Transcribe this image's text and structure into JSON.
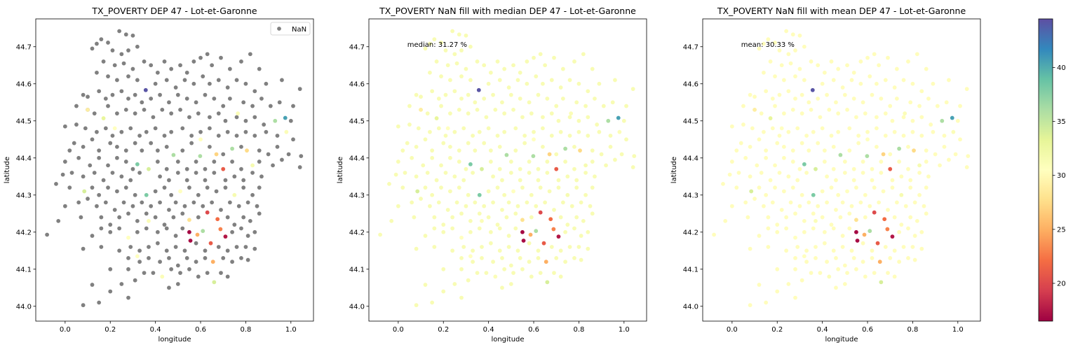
{
  "chart_data": [
    {
      "type": "scatter",
      "title": "TX_POVERTY DEP 47 -  Lot-et-Garonne",
      "xlabel": "longitude",
      "ylabel": "latitude",
      "xlim": [
        -0.13,
        1.1
      ],
      "ylim": [
        43.96,
        44.775
      ],
      "xticks": [
        "0.0",
        "0.2",
        "0.4",
        "0.6",
        "0.8",
        "1.0"
      ],
      "yticks": [
        "44.0",
        "44.1",
        "44.2",
        "44.3",
        "44.4",
        "44.5",
        "44.6",
        "44.7"
      ],
      "legend": {
        "label": "NaN",
        "placement": "top-right"
      },
      "nan_color": "#808080",
      "annotation": ""
    },
    {
      "type": "scatter",
      "title": "TX_POVERTY NaN fill with median DEP 47 -  Lot-et-Garonne",
      "xlabel": "longitude",
      "ylabel": "latitude",
      "xlim": [
        -0.13,
        1.1
      ],
      "ylim": [
        43.96,
        44.775
      ],
      "xticks": [
        "0.0",
        "0.2",
        "0.4",
        "0.6",
        "0.8",
        "1.0"
      ],
      "yticks": [
        "44.0",
        "44.1",
        "44.2",
        "44.3",
        "44.4",
        "44.5",
        "44.6",
        "44.7"
      ],
      "fill_value": 31.27,
      "annotation": "median: 31.27 %"
    },
    {
      "type": "scatter",
      "title": "TX_POVERTY NaN fill with mean DEP 47 -  Lot-et-Garonne",
      "xlabel": "longitude",
      "ylabel": "latitude",
      "xlim": [
        -0.13,
        1.1
      ],
      "ylim": [
        43.96,
        44.775
      ],
      "xticks": [
        "0.0",
        "0.2",
        "0.4",
        "0.6",
        "0.8",
        "1.0"
      ],
      "yticks": [
        "44.0",
        "44.1",
        "44.2",
        "44.3",
        "44.4",
        "44.5",
        "44.6",
        "44.7"
      ],
      "fill_value": 30.33,
      "annotation": "mean: 30.33 %"
    }
  ],
  "colorbar": {
    "cmap": "Spectral",
    "vmin": 16.5,
    "vmax": 44.5,
    "ticks": [
      "20",
      "25",
      "30",
      "35",
      "40"
    ],
    "tick_values": [
      20,
      25,
      30,
      35,
      40
    ]
  },
  "points": {
    "valued": [
      [
        0.357,
        44.583,
        44.2
      ],
      [
        0.975,
        44.508,
        40.5
      ],
      [
        0.93,
        44.5,
        36.0
      ],
      [
        0.17,
        44.507,
        33.0
      ],
      [
        0.74,
        44.425,
        36.0
      ],
      [
        0.48,
        44.408,
        36.0
      ],
      [
        0.598,
        44.405,
        36.0
      ],
      [
        0.32,
        44.383,
        38.0
      ],
      [
        0.37,
        44.37,
        34.0
      ],
      [
        0.36,
        44.3,
        38.0
      ],
      [
        0.085,
        44.31,
        34.0
      ],
      [
        0.6,
        44.45,
        30.5
      ],
      [
        0.805,
        44.42,
        27.5
      ],
      [
        0.67,
        44.41,
        27.0
      ],
      [
        0.7,
        44.37,
        21.0
      ],
      [
        0.1,
        44.53,
        29.0
      ],
      [
        0.22,
        44.48,
        30.5
      ],
      [
        0.765,
        44.52,
        31.0
      ],
      [
        0.98,
        44.47,
        31.0
      ],
      [
        0.83,
        44.38,
        31.5
      ],
      [
        0.51,
        44.31,
        30.5
      ],
      [
        0.63,
        44.253,
        20.0
      ],
      [
        0.55,
        44.233,
        28.0
      ],
      [
        0.675,
        44.235,
        22.0
      ],
      [
        0.55,
        44.2,
        16.8
      ],
      [
        0.688,
        44.208,
        23.0
      ],
      [
        0.61,
        44.203,
        36.0
      ],
      [
        0.586,
        44.193,
        25.0
      ],
      [
        0.71,
        44.188,
        17.5
      ],
      [
        0.555,
        44.177,
        17.0
      ],
      [
        0.645,
        44.17,
        21.0
      ],
      [
        0.655,
        44.12,
        25.0
      ],
      [
        0.66,
        44.065,
        34.0
      ],
      [
        0.28,
        44.185,
        30.5
      ],
      [
        0.37,
        44.23,
        31.0
      ],
      [
        0.32,
        44.135,
        30.5
      ],
      [
        0.43,
        44.08,
        31.0
      ],
      [
        0.75,
        44.3,
        31.5
      ]
    ],
    "nan": [
      [
        0.24,
        44.742
      ],
      [
        0.27,
        44.733
      ],
      [
        0.3,
        44.73
      ],
      [
        0.16,
        44.72
      ],
      [
        0.19,
        44.711
      ],
      [
        0.14,
        44.708
      ],
      [
        0.12,
        44.695
      ],
      [
        0.21,
        44.69
      ],
      [
        0.25,
        44.68
      ],
      [
        0.28,
        44.69
      ],
      [
        0.32,
        44.7
      ],
      [
        0.17,
        44.66
      ],
      [
        0.22,
        44.65
      ],
      [
        0.26,
        44.655
      ],
      [
        0.3,
        44.64
      ],
      [
        0.35,
        44.66
      ],
      [
        0.38,
        44.65
      ],
      [
        0.41,
        44.63
      ],
      [
        0.44,
        44.66
      ],
      [
        0.47,
        44.64
      ],
      [
        0.51,
        44.65
      ],
      [
        0.54,
        44.63
      ],
      [
        0.57,
        44.66
      ],
      [
        0.6,
        44.67
      ],
      [
        0.63,
        44.68
      ],
      [
        0.65,
        44.65
      ],
      [
        0.69,
        44.67
      ],
      [
        0.73,
        44.64
      ],
      [
        0.78,
        44.66
      ],
      [
        0.82,
        44.68
      ],
      [
        0.86,
        44.64
      ],
      [
        0.14,
        44.63
      ],
      [
        0.19,
        44.62
      ],
      [
        0.23,
        44.61
      ],
      [
        0.28,
        44.62
      ],
      [
        0.32,
        44.61
      ],
      [
        0.4,
        44.6
      ],
      [
        0.45,
        44.61
      ],
      [
        0.49,
        44.59
      ],
      [
        0.53,
        44.61
      ],
      [
        0.57,
        44.6
      ],
      [
        0.61,
        44.62
      ],
      [
        0.64,
        44.6
      ],
      [
        0.68,
        44.61
      ],
      [
        0.72,
        44.59
      ],
      [
        0.76,
        44.61
      ],
      [
        0.8,
        44.6
      ],
      [
        0.84,
        44.58
      ],
      [
        0.89,
        44.6
      ],
      [
        0.96,
        44.61
      ],
      [
        1.04,
        44.586
      ],
      [
        0.08,
        44.57
      ],
      [
        0.1,
        44.565
      ],
      [
        0.15,
        44.58
      ],
      [
        0.18,
        44.56
      ],
      [
        0.21,
        44.57
      ],
      [
        0.25,
        44.58
      ],
      [
        0.28,
        44.56
      ],
      [
        0.31,
        44.57
      ],
      [
        0.34,
        44.55
      ],
      [
        0.38,
        44.56
      ],
      [
        0.42,
        44.57
      ],
      [
        0.46,
        44.55
      ],
      [
        0.5,
        44.57
      ],
      [
        0.54,
        44.56
      ],
      [
        0.58,
        44.55
      ],
      [
        0.62,
        44.57
      ],
      [
        0.66,
        44.56
      ],
      [
        0.7,
        44.54
      ],
      [
        0.73,
        44.56
      ],
      [
        0.79,
        44.55
      ],
      [
        0.83,
        44.54
      ],
      [
        0.87,
        44.56
      ],
      [
        0.91,
        44.54
      ],
      [
        0.95,
        44.55
      ],
      [
        1.01,
        44.54
      ],
      [
        0.05,
        44.54
      ],
      [
        0.1,
        44.53
      ],
      [
        0.13,
        44.52
      ],
      [
        0.19,
        44.54
      ],
      [
        0.23,
        44.52
      ],
      [
        0.27,
        44.53
      ],
      [
        0.31,
        44.52
      ],
      [
        0.35,
        44.53
      ],
      [
        0.39,
        44.51
      ],
      [
        0.43,
        44.53
      ],
      [
        0.47,
        44.52
      ],
      [
        0.51,
        44.53
      ],
      [
        0.55,
        44.51
      ],
      [
        0.59,
        44.52
      ],
      [
        0.64,
        44.51
      ],
      [
        0.68,
        44.52
      ],
      [
        0.71,
        44.5
      ],
      [
        0.76,
        44.51
      ],
      [
        0.8,
        44.5
      ],
      [
        0.84,
        44.51
      ],
      [
        0.88,
        44.49
      ],
      [
        1.0,
        44.5
      ],
      [
        0.0,
        44.485
      ],
      [
        0.05,
        44.49
      ],
      [
        0.09,
        44.48
      ],
      [
        0.14,
        44.47
      ],
      [
        0.18,
        44.48
      ],
      [
        0.21,
        44.46
      ],
      [
        0.25,
        44.47
      ],
      [
        0.29,
        44.48
      ],
      [
        0.33,
        44.46
      ],
      [
        0.36,
        44.47
      ],
      [
        0.4,
        44.48
      ],
      [
        0.44,
        44.46
      ],
      [
        0.47,
        44.47
      ],
      [
        0.52,
        44.48
      ],
      [
        0.56,
        44.46
      ],
      [
        0.6,
        44.47
      ],
      [
        0.64,
        44.48
      ],
      [
        0.68,
        44.46
      ],
      [
        0.72,
        44.47
      ],
      [
        0.76,
        44.46
      ],
      [
        0.8,
        44.47
      ],
      [
        0.84,
        44.46
      ],
      [
        0.89,
        44.47
      ],
      [
        0.94,
        44.46
      ],
      [
        1.01,
        44.45
      ],
      [
        0.02,
        44.42
      ],
      [
        0.04,
        44.44
      ],
      [
        0.08,
        44.43
      ],
      [
        0.12,
        44.45
      ],
      [
        0.15,
        44.42
      ],
      [
        0.2,
        44.44
      ],
      [
        0.23,
        44.43
      ],
      [
        0.27,
        44.42
      ],
      [
        0.31,
        44.44
      ],
      [
        0.34,
        44.42
      ],
      [
        0.38,
        44.44
      ],
      [
        0.41,
        44.42
      ],
      [
        0.45,
        44.43
      ],
      [
        0.52,
        44.42
      ],
      [
        0.56,
        44.44
      ],
      [
        0.64,
        44.43
      ],
      [
        0.7,
        44.41
      ],
      [
        0.78,
        44.43
      ],
      [
        0.86,
        44.42
      ],
      [
        0.9,
        44.41
      ],
      [
        0.94,
        44.43
      ],
      [
        0.99,
        44.41
      ],
      [
        1.045,
        44.405
      ],
      [
        0.0,
        44.39
      ],
      [
        0.06,
        44.4
      ],
      [
        0.11,
        44.38
      ],
      [
        0.15,
        44.4
      ],
      [
        0.19,
        44.38
      ],
      [
        0.23,
        44.4
      ],
      [
        0.27,
        44.39
      ],
      [
        0.3,
        44.37
      ],
      [
        0.41,
        44.39
      ],
      [
        0.45,
        44.37
      ],
      [
        0.5,
        44.39
      ],
      [
        0.54,
        44.37
      ],
      [
        0.58,
        44.39
      ],
      [
        0.62,
        44.37
      ],
      [
        0.66,
        44.39
      ],
      [
        0.74,
        44.39
      ],
      [
        0.78,
        44.37
      ],
      [
        0.86,
        44.39
      ],
      [
        0.92,
        44.38
      ],
      [
        0.96,
        44.395
      ],
      [
        1.04,
        44.375
      ],
      [
        -0.01,
        44.355
      ],
      [
        0.03,
        44.36
      ],
      [
        0.08,
        44.35
      ],
      [
        0.13,
        44.36
      ],
      [
        0.17,
        44.34
      ],
      [
        0.21,
        44.36
      ],
      [
        0.25,
        44.35
      ],
      [
        0.29,
        44.34
      ],
      [
        0.33,
        44.36
      ],
      [
        0.42,
        44.35
      ],
      [
        0.46,
        44.34
      ],
      [
        0.5,
        44.36
      ],
      [
        0.54,
        44.34
      ],
      [
        0.58,
        44.36
      ],
      [
        0.62,
        44.34
      ],
      [
        0.66,
        44.36
      ],
      [
        0.71,
        44.34
      ],
      [
        0.75,
        44.35
      ],
      [
        0.79,
        44.34
      ],
      [
        0.83,
        44.36
      ],
      [
        0.87,
        44.35
      ],
      [
        -0.04,
        44.33
      ],
      [
        0.02,
        44.32
      ],
      [
        0.12,
        44.32
      ],
      [
        0.15,
        44.3
      ],
      [
        0.19,
        44.32
      ],
      [
        0.23,
        44.31
      ],
      [
        0.27,
        44.32
      ],
      [
        0.31,
        44.3
      ],
      [
        0.4,
        44.31
      ],
      [
        0.44,
        44.32
      ],
      [
        0.47,
        44.3
      ],
      [
        0.55,
        44.32
      ],
      [
        0.59,
        44.3
      ],
      [
        0.63,
        44.32
      ],
      [
        0.67,
        44.31
      ],
      [
        0.71,
        44.32
      ],
      [
        0.79,
        44.32
      ],
      [
        0.83,
        44.3
      ],
      [
        0.86,
        44.32
      ],
      [
        0.0,
        44.27
      ],
      [
        0.06,
        44.28
      ],
      [
        0.1,
        44.29
      ],
      [
        0.14,
        44.27
      ],
      [
        0.18,
        44.28
      ],
      [
        0.22,
        44.26
      ],
      [
        0.26,
        44.28
      ],
      [
        0.3,
        44.27
      ],
      [
        0.34,
        44.28
      ],
      [
        0.38,
        44.27
      ],
      [
        0.42,
        44.28
      ],
      [
        0.46,
        44.26
      ],
      [
        0.49,
        44.28
      ],
      [
        0.53,
        44.27
      ],
      [
        0.57,
        44.28
      ],
      [
        0.61,
        44.27
      ],
      [
        0.65,
        44.28
      ],
      [
        0.69,
        44.26
      ],
      [
        0.73,
        44.28
      ],
      [
        0.77,
        44.27
      ],
      [
        0.81,
        44.28
      ],
      [
        0.85,
        44.27
      ],
      [
        -0.03,
        44.23
      ],
      [
        0.07,
        44.24
      ],
      [
        0.16,
        44.24
      ],
      [
        0.2,
        44.22
      ],
      [
        0.24,
        44.24
      ],
      [
        0.28,
        44.25
      ],
      [
        0.32,
        44.23
      ],
      [
        0.36,
        44.25
      ],
      [
        0.4,
        44.24
      ],
      [
        0.44,
        44.22
      ],
      [
        0.48,
        44.24
      ],
      [
        0.52,
        44.25
      ],
      [
        0.59,
        44.24
      ],
      [
        0.72,
        44.24
      ],
      [
        0.75,
        44.22
      ],
      [
        0.79,
        44.24
      ],
      [
        0.82,
        44.23
      ],
      [
        0.86,
        44.25
      ],
      [
        -0.08,
        44.193
      ],
      [
        0.12,
        44.19
      ],
      [
        0.16,
        44.21
      ],
      [
        0.2,
        44.2
      ],
      [
        0.24,
        44.21
      ],
      [
        0.32,
        44.2
      ],
      [
        0.36,
        44.21
      ],
      [
        0.41,
        44.2
      ],
      [
        0.45,
        44.21
      ],
      [
        0.49,
        44.19
      ],
      [
        0.52,
        44.21
      ],
      [
        0.74,
        44.2
      ],
      [
        0.78,
        44.21
      ],
      [
        0.81,
        44.19
      ],
      [
        0.84,
        44.2
      ],
      [
        0.08,
        44.155
      ],
      [
        0.16,
        44.16
      ],
      [
        0.24,
        44.15
      ],
      [
        0.29,
        44.16
      ],
      [
        0.33,
        44.15
      ],
      [
        0.37,
        44.16
      ],
      [
        0.41,
        44.17
      ],
      [
        0.45,
        44.15
      ],
      [
        0.49,
        44.16
      ],
      [
        0.53,
        44.15
      ],
      [
        0.58,
        44.17
      ],
      [
        0.62,
        44.15
      ],
      [
        0.68,
        44.16
      ],
      [
        0.72,
        44.15
      ],
      [
        0.76,
        44.16
      ],
      [
        0.8,
        44.16
      ],
      [
        0.84,
        44.155
      ],
      [
        0.28,
        44.13
      ],
      [
        0.33,
        44.12
      ],
      [
        0.37,
        44.13
      ],
      [
        0.42,
        44.12
      ],
      [
        0.46,
        44.13
      ],
      [
        0.5,
        44.11
      ],
      [
        0.54,
        44.13
      ],
      [
        0.58,
        44.12
      ],
      [
        0.62,
        44.13
      ],
      [
        0.7,
        44.13
      ],
      [
        0.74,
        44.12
      ],
      [
        0.78,
        44.13
      ],
      [
        0.81,
        44.125
      ],
      [
        0.2,
        44.1
      ],
      [
        0.28,
        44.1
      ],
      [
        0.35,
        44.09
      ],
      [
        0.39,
        44.09
      ],
      [
        0.47,
        44.1
      ],
      [
        0.51,
        44.09
      ],
      [
        0.55,
        44.1
      ],
      [
        0.59,
        44.08
      ],
      [
        0.63,
        44.09
      ],
      [
        0.69,
        44.09
      ],
      [
        0.72,
        44.08
      ],
      [
        0.12,
        44.058
      ],
      [
        0.25,
        44.06
      ],
      [
        0.31,
        44.07
      ],
      [
        0.46,
        44.05
      ],
      [
        0.5,
        44.06
      ],
      [
        0.2,
        44.04
      ],
      [
        0.28,
        44.023
      ],
      [
        0.15,
        44.01
      ],
      [
        0.08,
        44.003
      ]
    ]
  }
}
